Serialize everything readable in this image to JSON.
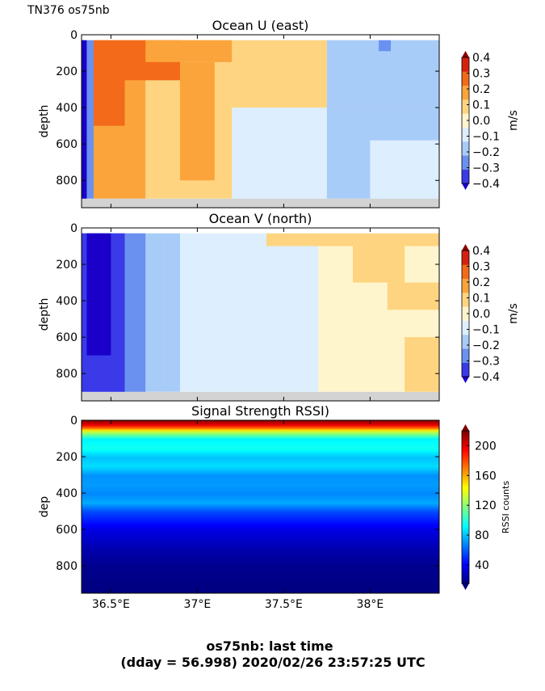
{
  "header": {
    "label": "TN376 os75nb"
  },
  "footer": {
    "line1": "os75nb: last time",
    "line2": "(dday = 56.998) 2020/02/26 23:57:25 UTC"
  },
  "shared_x": {
    "ticks": [
      36.5,
      37.0,
      37.5,
      38.0
    ],
    "tick_labels": [
      "36.5°E",
      "37°E",
      "37.5°E",
      "38°E"
    ],
    "xlim": [
      36.33,
      38.4
    ]
  },
  "chart_data": [
    {
      "type": "heatmap",
      "title": "Ocean U (east)",
      "ylabel": "depth",
      "ylim": [
        950,
        0
      ],
      "yticks": [
        0,
        200,
        400,
        600,
        800
      ],
      "colorbar": {
        "label": "m/s",
        "ticks": [
          0.4,
          0.3,
          0.2,
          0.1,
          0.0,
          -0.1,
          -0.2,
          -0.3,
          -0.4
        ],
        "tick_labels": [
          "0.4",
          "0.3",
          "0.2",
          "0.1",
          "0.0",
          "−0.1",
          "−0.2",
          "−0.3",
          "−0.4"
        ],
        "colors": [
          "#1a00c8",
          "#3a3ae8",
          "#6a90f0",
          "#a8ccf8",
          "#ddeeff",
          "#fff5cc",
          "#fed480",
          "#fba43c",
          "#f26a1a",
          "#d62010",
          "#8a0000"
        ]
      },
      "data_bottom_depth": 900,
      "regions": [
        {
          "x": [
            36.33,
            38.4
          ],
          "y": [
            30,
            900
          ],
          "value": -0.05
        },
        {
          "x": [
            36.7,
            37.2
          ],
          "y": [
            30,
            900
          ],
          "value": 0.15
        },
        {
          "x": [
            37.2,
            37.75
          ],
          "y": [
            30,
            400
          ],
          "value": 0.15
        },
        {
          "x": [
            37.75,
            38.4
          ],
          "y": [
            30,
            400
          ],
          "value": -0.15
        },
        {
          "x": [
            37.75,
            38.4
          ],
          "y": [
            400,
            900
          ],
          "value": -0.15
        },
        {
          "x": [
            38.0,
            38.4
          ],
          "y": [
            580,
            900
          ],
          "value": -0.05
        },
        {
          "x": [
            36.4,
            36.7
          ],
          "y": [
            30,
            900
          ],
          "value": 0.25
        },
        {
          "x": [
            36.4,
            36.58
          ],
          "y": [
            30,
            500
          ],
          "value": 0.35
        },
        {
          "x": [
            36.58,
            36.9
          ],
          "y": [
            30,
            250
          ],
          "value": 0.35
        },
        {
          "x": [
            36.7,
            37.2
          ],
          "y": [
            30,
            150
          ],
          "value": 0.25
        },
        {
          "x": [
            36.9,
            37.1
          ],
          "y": [
            150,
            800
          ],
          "value": 0.25
        },
        {
          "x": [
            36.33,
            36.4
          ],
          "y": [
            30,
            900
          ],
          "value": -0.3
        },
        {
          "x": [
            36.33,
            36.36
          ],
          "y": [
            30,
            900
          ],
          "value": -0.45
        },
        {
          "x": [
            38.05,
            38.12
          ],
          "y": [
            30,
            90
          ],
          "value": -0.3
        }
      ]
    },
    {
      "type": "heatmap",
      "title": "Ocean V (north)",
      "ylabel": "depth",
      "ylim": [
        950,
        0
      ],
      "yticks": [
        0,
        200,
        400,
        600,
        800
      ],
      "colorbar": {
        "label": "m/s",
        "ticks": [
          0.4,
          0.3,
          0.2,
          0.1,
          0.0,
          -0.1,
          -0.2,
          -0.3,
          -0.4
        ],
        "tick_labels": [
          "0.4",
          "0.3",
          "0.2",
          "0.1",
          "0.0",
          "−0.1",
          "−0.2",
          "−0.3",
          "−0.4"
        ],
        "colors": [
          "#1a00c8",
          "#3a3ae8",
          "#6a90f0",
          "#a8ccf8",
          "#ddeeff",
          "#fff5cc",
          "#fed480",
          "#fba43c",
          "#f26a1a",
          "#d62010",
          "#8a0000"
        ]
      },
      "data_bottom_depth": 900,
      "regions": [
        {
          "x": [
            36.33,
            38.4
          ],
          "y": [
            30,
            900
          ],
          "value": 0.05
        },
        {
          "x": [
            36.33,
            37.7
          ],
          "y": [
            30,
            900
          ],
          "value": -0.05
        },
        {
          "x": [
            37.4,
            38.4
          ],
          "y": [
            30,
            100
          ],
          "value": 0.15
        },
        {
          "x": [
            37.9,
            38.2
          ],
          "y": [
            100,
            300
          ],
          "value": 0.15
        },
        {
          "x": [
            38.1,
            38.4
          ],
          "y": [
            300,
            450
          ],
          "value": 0.15
        },
        {
          "x": [
            38.2,
            38.4
          ],
          "y": [
            600,
            900
          ],
          "value": 0.12
        },
        {
          "x": [
            36.33,
            36.8
          ],
          "y": [
            30,
            900
          ],
          "value": -0.15
        },
        {
          "x": [
            36.33,
            36.7
          ],
          "y": [
            30,
            900
          ],
          "value": -0.25
        },
        {
          "x": [
            36.33,
            36.58
          ],
          "y": [
            30,
            900
          ],
          "value": -0.35
        },
        {
          "x": [
            36.36,
            36.5
          ],
          "y": [
            30,
            700
          ],
          "value": -0.45
        },
        {
          "x": [
            36.8,
            36.9
          ],
          "y": [
            30,
            900
          ],
          "value": -0.15
        }
      ]
    },
    {
      "type": "heatmap",
      "title": "Signal Strength RSSI)",
      "ylabel": "dep",
      "ylim": [
        950,
        0
      ],
      "yticks": [
        0,
        200,
        400,
        600,
        800
      ],
      "colorbar": {
        "label": "RSSI counts",
        "ticks": [
          200,
          160,
          120,
          80,
          40
        ],
        "tick_labels": [
          "200",
          "160",
          "120",
          "80",
          "40"
        ],
        "vmin": 15,
        "vmax": 220
      },
      "profile": {
        "depth": [
          0,
          20,
          40,
          60,
          100,
          150,
          200,
          250,
          300,
          350,
          400,
          450,
          500,
          550,
          600,
          700,
          800,
          950
        ],
        "rssi": [
          215,
          200,
          170,
          130,
          90,
          95,
          80,
          85,
          70,
          72,
          68,
          75,
          55,
          45,
          35,
          25,
          18,
          15
        ]
      }
    }
  ]
}
